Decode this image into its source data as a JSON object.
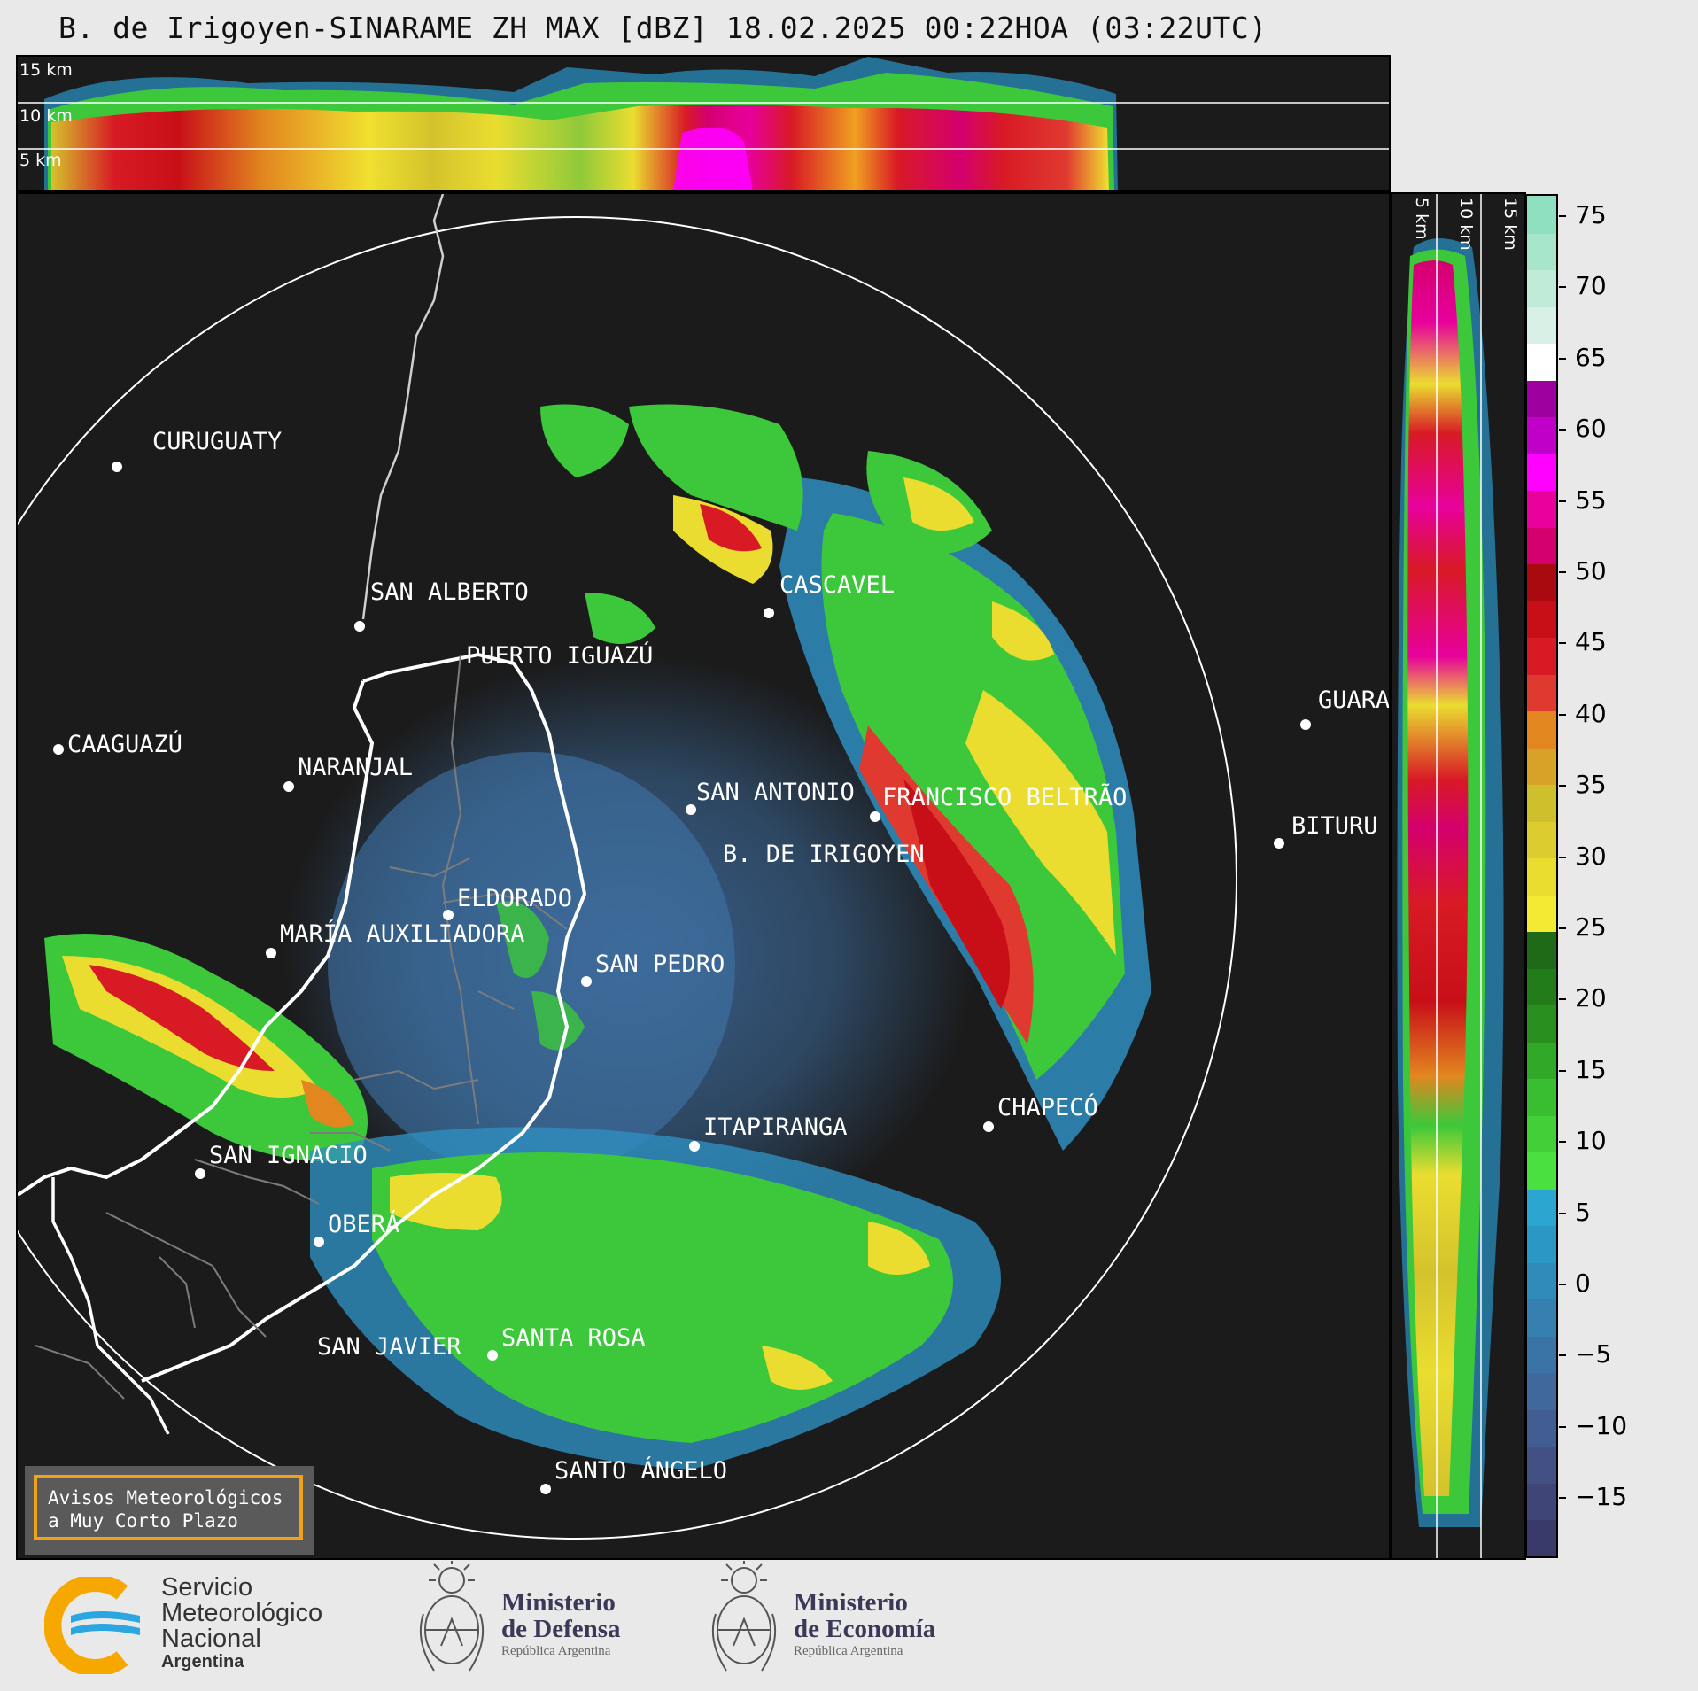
{
  "title": "B. de Irigoyen-SINARAME ZH MAX [dBZ] 18.02.2025 00:22HOA (03:22UTC)",
  "top_panel": {
    "height_labels": [
      "15 km",
      "10 km",
      "5 km"
    ]
  },
  "right_panel": {
    "height_labels": [
      "5 km",
      "10 km",
      "15 km"
    ]
  },
  "colorbar": {
    "ticks": [
      "75",
      "70",
      "65",
      "60",
      "55",
      "50",
      "45",
      "40",
      "35",
      "30",
      "25",
      "20",
      "15",
      "10",
      "5",
      "0",
      "−5",
      "−10",
      "−15"
    ],
    "colors": [
      "#3a3a6a",
      "#3f4577",
      "#425084",
      "#425d91",
      "#40689c",
      "#3a74a6",
      "#3580b0",
      "#2f8cba",
      "#2b98c4",
      "#2aa6d0",
      "#49e040",
      "#41d038",
      "#38be30",
      "#30a828",
      "#299020",
      "#237c1a",
      "#1f6a16",
      "#f5ea33",
      "#eadd30",
      "#dccc30",
      "#cebf2c",
      "#d8a228",
      "#e2861f",
      "#e03a30",
      "#d81a25",
      "#c80f18",
      "#a80a10",
      "#d4006e",
      "#e8009c",
      "#ff00ff",
      "#c000c8",
      "#9e00a0",
      "#ffffff",
      "#d9f0e6",
      "#c0ebd8",
      "#a8e6cc",
      "#8ee0c0"
    ]
  },
  "cities": [
    {
      "name": "CURUGUATY"
    },
    {
      "name": "SAN ALBERTO"
    },
    {
      "name": "CAAGUAZÚ"
    },
    {
      "name": "CASCAVEL"
    },
    {
      "name": "GUARA"
    },
    {
      "name": "PUERTO IGUAZÚ"
    },
    {
      "name": "NARANJAL"
    },
    {
      "name": "SAN ANTONIO"
    },
    {
      "name": "FRANCISCO BELTRÃO"
    },
    {
      "name": "BITURU"
    },
    {
      "name": "B. DE IRIGOYEN"
    },
    {
      "name": "ELDORADO"
    },
    {
      "name": "MARÍA AUXILIADORA"
    },
    {
      "name": "SAN PEDRO"
    },
    {
      "name": "CHAPECÓ"
    },
    {
      "name": "ITAPIRANGA"
    },
    {
      "name": "SAN IGNACIO"
    },
    {
      "name": "OBERÁ"
    },
    {
      "name": "SAN JAVIER"
    },
    {
      "name": "SANTA ROSA"
    },
    {
      "name": "SANTO ÁNGELO"
    }
  ],
  "warning_box": {
    "line1": "Avisos Meteorológicos",
    "line2": "a Muy Corto Plazo"
  },
  "logos": {
    "smn": {
      "line1": "Servicio",
      "line2": "Meteorológico",
      "line3": "Nacional",
      "line4": "Argentina"
    },
    "defensa": {
      "line1": "Ministerio",
      "line2": "de Defensa",
      "line3": "República Argentina"
    },
    "economia": {
      "line1": "Ministerio",
      "line2": "de Economía",
      "line3": "República Argentina"
    }
  }
}
